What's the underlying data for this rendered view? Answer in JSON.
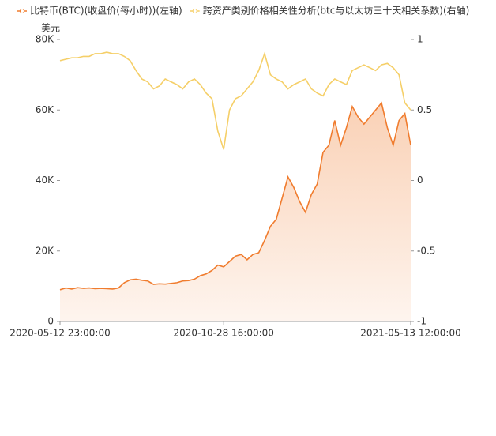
{
  "chart_data": {
    "type": "line",
    "ylabel": "美元",
    "categories": [
      "2020-05-12 23:00:00",
      null,
      null,
      null,
      null,
      null,
      null,
      null,
      null,
      null,
      null,
      null,
      null,
      null,
      null,
      null,
      null,
      null,
      null,
      null,
      null,
      null,
      null,
      null,
      null,
      null,
      null,
      null,
      "2020-10-28 16:00:00",
      null,
      null,
      null,
      null,
      null,
      null,
      null,
      null,
      null,
      null,
      null,
      null,
      null,
      null,
      null,
      null,
      null,
      null,
      null,
      null,
      null,
      null,
      null,
      null,
      null,
      null,
      null,
      null,
      null,
      null,
      null,
      "2021-05-13 12:00:00"
    ],
    "ylim": [
      0,
      80000
    ],
    "yticks": [
      0,
      {
        "value": 20000,
        "label": "20K"
      },
      {
        "value": 40000,
        "label": "40K"
      },
      {
        "value": 60000,
        "label": "60K"
      },
      {
        "value": 80000,
        "label": "80K"
      }
    ],
    "y2lim": [
      -1,
      1
    ],
    "y2ticks": [
      -1,
      -0.5,
      0,
      0.5,
      1
    ],
    "series": [
      {
        "name": "比特币(BTC)(收盘价(每小时))(左轴)",
        "color": "#f07c2e",
        "area": true,
        "values": [
          9000,
          9500,
          9200,
          9600,
          9400,
          9500,
          9300,
          9400,
          9300,
          9200,
          9500,
          11000,
          11800,
          12000,
          11700,
          11500,
          10500,
          10700,
          10600,
          10800,
          11000,
          11500,
          11600,
          12000,
          13000,
          13500,
          14500,
          16000,
          15500,
          17000,
          18500,
          19000,
          17500,
          19000,
          19500,
          23000,
          27000,
          29000,
          35000,
          41000,
          38000,
          34000,
          31000,
          36000,
          39000,
          48000,
          50000,
          57000,
          50000,
          55000,
          61000,
          58000,
          56000,
          58000,
          60000,
          62000,
          55000,
          50000,
          57000,
          59000,
          50000
        ]
      },
      {
        "name": "跨资产类别价格相关性分析(btc与以太坊三十天相关系数)(右轴)",
        "color": "#f5cf68",
        "axis": "y2",
        "values": [
          0.85,
          0.86,
          0.87,
          0.87,
          0.88,
          0.88,
          0.9,
          0.9,
          0.91,
          0.9,
          0.9,
          0.88,
          0.85,
          0.78,
          0.72,
          0.7,
          0.65,
          0.67,
          0.72,
          0.7,
          0.68,
          0.65,
          0.7,
          0.72,
          0.68,
          0.62,
          0.58,
          0.35,
          0.22,
          0.5,
          0.58,
          0.6,
          0.65,
          0.7,
          0.78,
          0.9,
          0.75,
          0.72,
          0.7,
          0.65,
          0.68,
          0.7,
          0.72,
          0.65,
          0.62,
          0.6,
          0.68,
          0.72,
          0.7,
          0.68,
          0.78,
          0.8,
          0.82,
          0.8,
          0.78,
          0.82,
          0.83,
          0.8,
          0.75,
          0.55,
          0.5
        ]
      }
    ]
  }
}
